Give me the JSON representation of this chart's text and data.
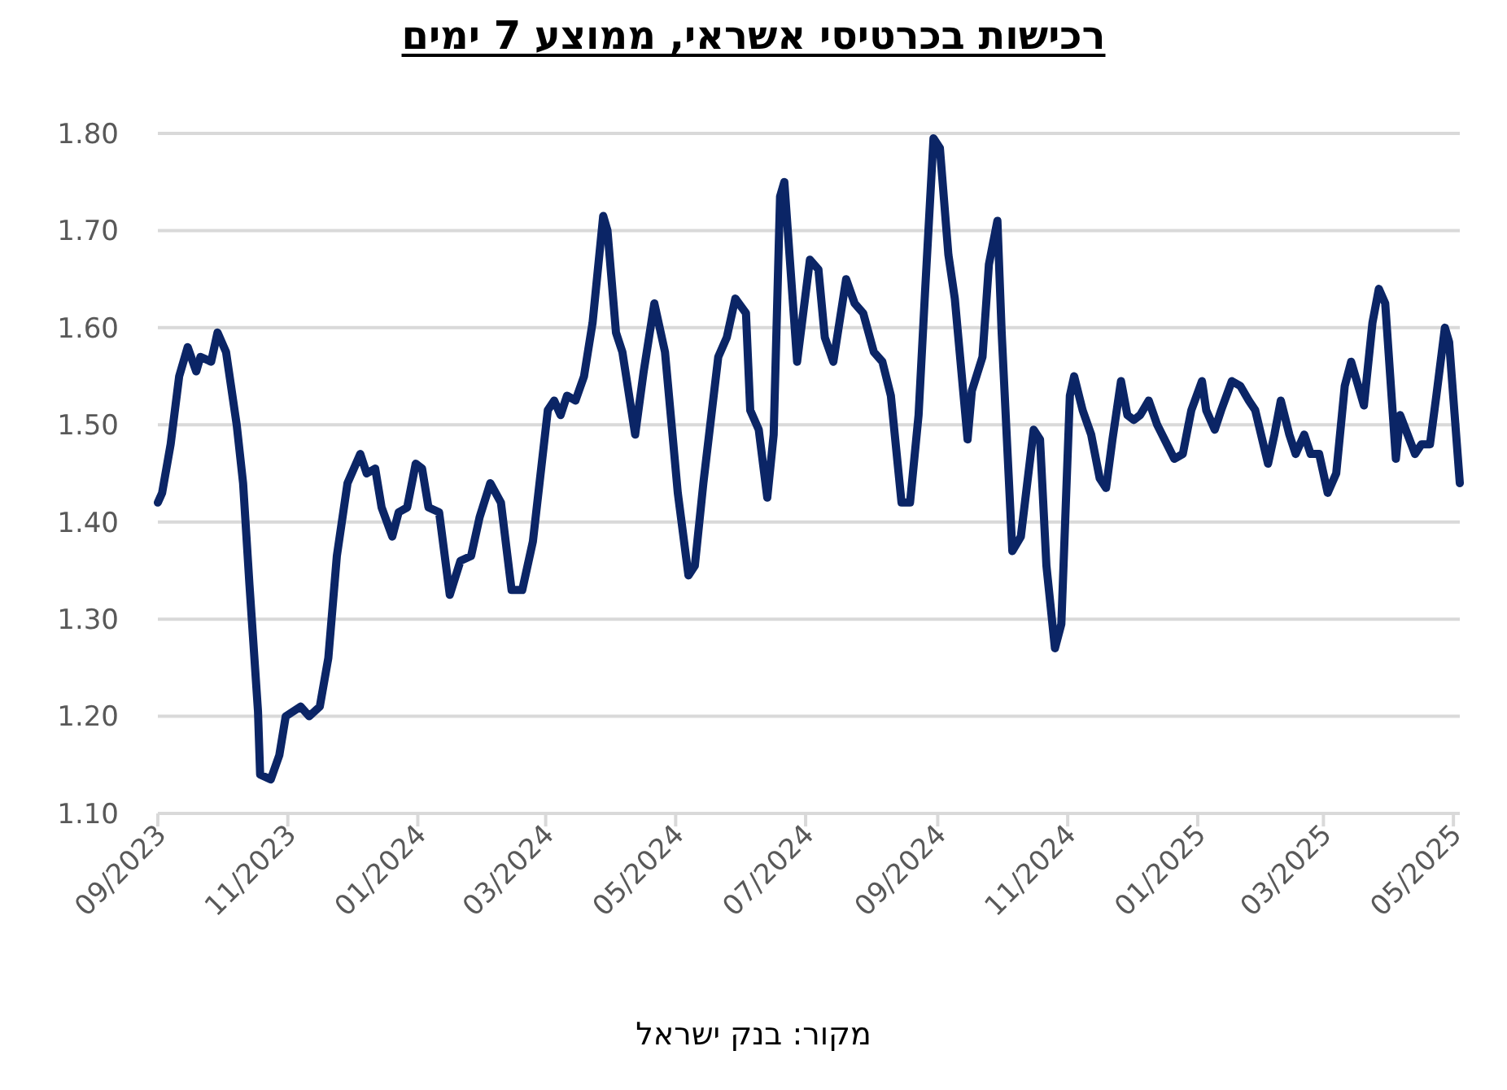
{
  "chart_data": {
    "type": "line",
    "title": "רכישות בכרטיסי אשראי, ממוצע 7 ימים",
    "annotations": [
      "מקור: בנק ישראל"
    ],
    "x": [
      "2023-09-01",
      "2023-09-03",
      "2023-09-07",
      "2023-09-11",
      "2023-09-15",
      "2023-09-19",
      "2023-09-21",
      "2023-09-26",
      "2023-09-29",
      "2023-10-03",
      "2023-10-08",
      "2023-10-11",
      "2023-10-14",
      "2023-10-18",
      "2023-10-19",
      "2023-10-24",
      "2023-10-28",
      "2023-10-31",
      "2023-11-07",
      "2023-11-11",
      "2023-11-16",
      "2023-11-20",
      "2023-11-24",
      "2023-11-29",
      "2023-12-05",
      "2023-12-08",
      "2023-12-12",
      "2023-12-15",
      "2023-12-20",
      "2023-12-23",
      "2023-12-27",
      "2023-12-31",
      "2024-01-03",
      "2024-01-06",
      "2024-01-11",
      "2024-01-16",
      "2024-01-21",
      "2024-01-26",
      "2024-01-30",
      "2024-02-04",
      "2024-02-09",
      "2024-02-14",
      "2024-02-19",
      "2024-02-24",
      "2024-03-02",
      "2024-03-05",
      "2024-03-08",
      "2024-03-11",
      "2024-03-15",
      "2024-03-19",
      "2024-03-23",
      "2024-03-28",
      "2024-03-30",
      "2024-04-03",
      "2024-04-06",
      "2024-04-12",
      "2024-04-16",
      "2024-04-21",
      "2024-04-26",
      "2024-05-02",
      "2024-05-07",
      "2024-05-10",
      "2024-05-14",
      "2024-05-21",
      "2024-05-25",
      "2024-05-29",
      "2024-06-03",
      "2024-06-05",
      "2024-06-09",
      "2024-06-13",
      "2024-06-16",
      "2024-06-19",
      "2024-06-21",
      "2024-06-27",
      "2024-07-03",
      "2024-07-07",
      "2024-07-10",
      "2024-07-14",
      "2024-07-20",
      "2024-07-24",
      "2024-07-28",
      "2024-08-02",
      "2024-08-06",
      "2024-08-10",
      "2024-08-15",
      "2024-08-19",
      "2024-08-23",
      "2024-08-26",
      "2024-08-30",
      "2024-09-02",
      "2024-09-06",
      "2024-09-09",
      "2024-09-15",
      "2024-09-17",
      "2024-09-22",
      "2024-09-25",
      "2024-09-29",
      "2024-10-01",
      "2024-10-06",
      "2024-10-10",
      "2024-10-16",
      "2024-10-19",
      "2024-10-22",
      "2024-10-26",
      "2024-10-29",
      "2024-11-02",
      "2024-11-04",
      "2024-11-08",
      "2024-11-12",
      "2024-11-16",
      "2024-11-19",
      "2024-11-22",
      "2024-11-26",
      "2024-11-29",
      "2024-12-02",
      "2024-12-05",
      "2024-12-09",
      "2024-12-13",
      "2024-12-21",
      "2024-12-25",
      "2024-12-29",
      "2025-01-03",
      "2025-01-05",
      "2025-01-09",
      "2025-01-12",
      "2025-01-17",
      "2025-01-21",
      "2025-01-25",
      "2025-01-28",
      "2025-02-03",
      "2025-02-06",
      "2025-02-09",
      "2025-02-13",
      "2025-02-16",
      "2025-02-20",
      "2025-02-23",
      "2025-02-27",
      "2025-03-03",
      "2025-03-07",
      "2025-03-11",
      "2025-03-14",
      "2025-03-20",
      "2025-03-24",
      "2025-03-27",
      "2025-03-30",
      "2025-04-04",
      "2025-04-06",
      "2025-04-13",
      "2025-04-16",
      "2025-04-20",
      "2025-04-23",
      "2025-04-27",
      "2025-04-29",
      "2025-05-04"
    ],
    "series": [
      {
        "color": "#0b2566",
        "values": [
          1.42,
          1.43,
          1.48,
          1.55,
          1.58,
          1.555,
          1.57,
          1.565,
          1.595,
          1.575,
          1.5,
          1.44,
          1.335,
          1.205,
          1.14,
          1.135,
          1.16,
          1.2,
          1.21,
          1.2,
          1.21,
          1.26,
          1.365,
          1.44,
          1.47,
          1.45,
          1.455,
          1.415,
          1.385,
          1.41,
          1.415,
          1.46,
          1.455,
          1.415,
          1.41,
          1.325,
          1.36,
          1.365,
          1.405,
          1.44,
          1.42,
          1.33,
          1.33,
          1.38,
          1.515,
          1.525,
          1.51,
          1.53,
          1.525,
          1.55,
          1.605,
          1.715,
          1.7,
          1.595,
          1.575,
          1.49,
          1.555,
          1.625,
          1.575,
          1.43,
          1.345,
          1.355,
          1.44,
          1.57,
          1.59,
          1.63,
          1.615,
          1.515,
          1.495,
          1.425,
          1.49,
          1.735,
          1.75,
          1.565,
          1.67,
          1.66,
          1.59,
          1.565,
          1.65,
          1.625,
          1.615,
          1.575,
          1.565,
          1.53,
          1.42,
          1.42,
          1.51,
          1.635,
          1.795,
          1.785,
          1.675,
          1.63,
          1.485,
          1.535,
          1.57,
          1.665,
          1.71,
          1.595,
          1.37,
          1.385,
          1.495,
          1.485,
          1.355,
          1.27,
          1.295,
          1.53,
          1.55,
          1.515,
          1.49,
          1.445,
          1.435,
          1.485,
          1.545,
          1.51,
          1.505,
          1.51,
          1.525,
          1.5,
          1.465,
          1.47,
          1.515,
          1.545,
          1.515,
          1.495,
          1.515,
          1.545,
          1.54,
          1.525,
          1.515,
          1.46,
          1.49,
          1.525,
          1.49,
          1.47,
          1.49,
          1.47,
          1.47,
          1.43,
          1.45,
          1.54,
          1.565,
          1.52,
          1.605,
          1.64,
          1.625,
          1.465,
          1.51,
          1.47,
          1.48,
          1.48,
          1.53,
          1.6,
          1.585,
          1.44
        ]
      }
    ],
    "xlim": [
      "2023-09-01",
      "2025-05-04"
    ],
    "xticks": [
      {
        "value": "2023-09-01",
        "label": "09/2023"
      },
      {
        "value": "2023-11-01",
        "label": "11/2023"
      },
      {
        "value": "2024-01-01",
        "label": "01/2024"
      },
      {
        "value": "2024-03-01",
        "label": "03/2024"
      },
      {
        "value": "2024-05-01",
        "label": "05/2024"
      },
      {
        "value": "2024-07-01",
        "label": "07/2024"
      },
      {
        "value": "2024-09-01",
        "label": "09/2024"
      },
      {
        "value": "2024-11-01",
        "label": "11/2024"
      },
      {
        "value": "2025-01-01",
        "label": "01/2025"
      },
      {
        "value": "2025-03-01",
        "label": "03/2025"
      },
      {
        "value": "2025-05-01",
        "label": "05/2025"
      }
    ],
    "ylim": [
      1.1,
      1.8
    ],
    "yticks": [
      {
        "value": 1.1,
        "label": "1.10"
      },
      {
        "value": 1.2,
        "label": "1.20"
      },
      {
        "value": 1.3,
        "label": "1.30"
      },
      {
        "value": 1.4,
        "label": "1.40"
      },
      {
        "value": 1.5,
        "label": "1.50"
      },
      {
        "value": 1.6,
        "label": "1.60"
      },
      {
        "value": 1.7,
        "label": "1.70"
      },
      {
        "value": 1.8,
        "label": "1.80"
      }
    ],
    "grid": "y",
    "marker": "none",
    "line_style": "solid"
  }
}
